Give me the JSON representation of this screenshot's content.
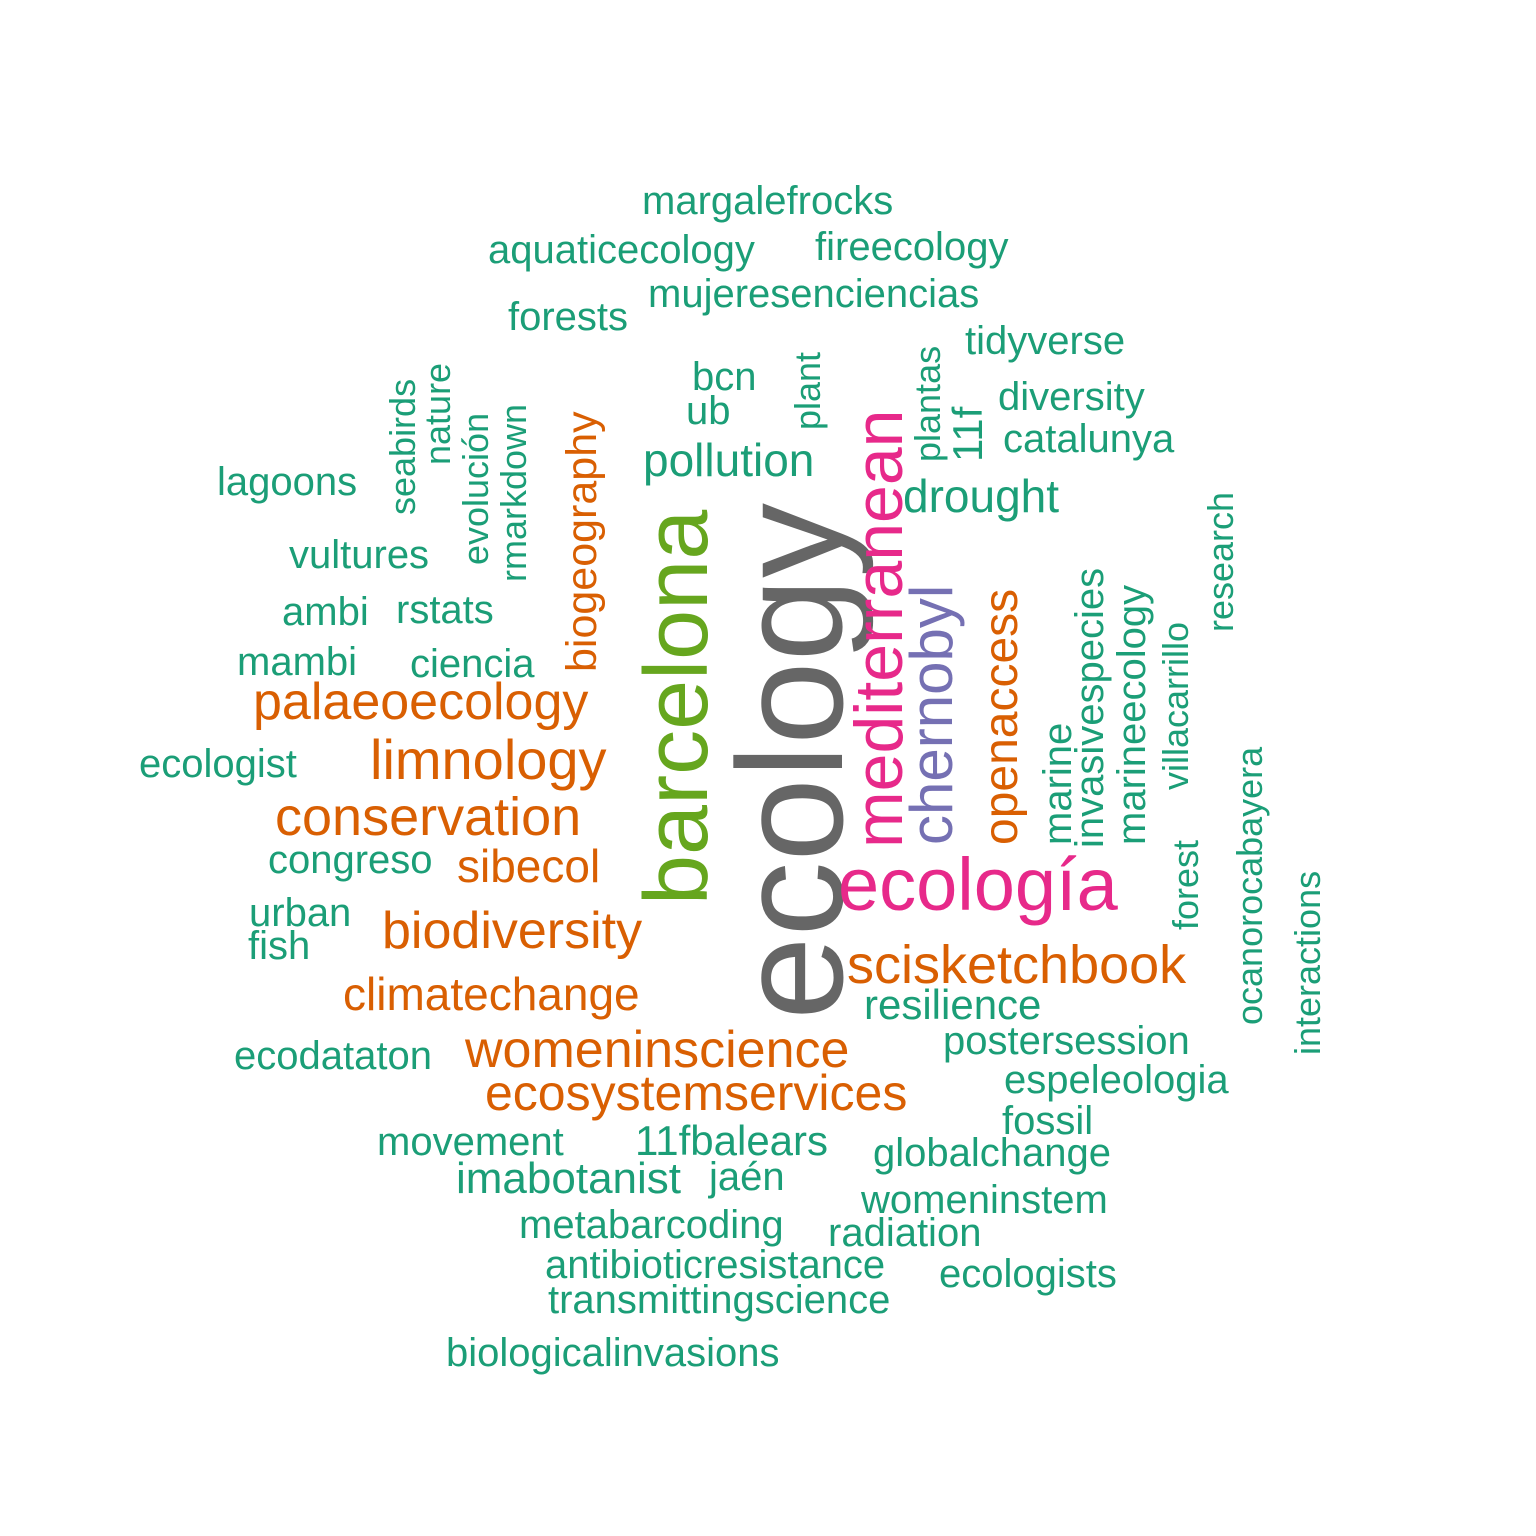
{
  "colors": {
    "teal": "#1b9e77",
    "orange": "#d95f02",
    "purple": "#7570b3",
    "pink": "#e7298a",
    "green": "#66a61e",
    "gray": "#666666"
  },
  "words": [
    {
      "text": "ecology",
      "color": "gray"
    },
    {
      "text": "barcelona",
      "color": "green"
    },
    {
      "text": "mediterranean",
      "color": "pink"
    },
    {
      "text": "ecología",
      "color": "pink"
    },
    {
      "text": "chernobyl",
      "color": "purple"
    },
    {
      "text": "openaccess",
      "color": "orange"
    },
    {
      "text": "biogeography",
      "color": "orange"
    },
    {
      "text": "palaeoecology",
      "color": "orange"
    },
    {
      "text": "limnology",
      "color": "orange"
    },
    {
      "text": "conservation",
      "color": "orange"
    },
    {
      "text": "sibecol",
      "color": "orange"
    },
    {
      "text": "biodiversity",
      "color": "orange"
    },
    {
      "text": "climatechange",
      "color": "orange"
    },
    {
      "text": "womeninscience",
      "color": "orange"
    },
    {
      "text": "ecosystemservices",
      "color": "orange"
    },
    {
      "text": "scisketchbook",
      "color": "orange"
    },
    {
      "text": "margalefrocks",
      "color": "teal"
    },
    {
      "text": "aquaticecology",
      "color": "teal"
    },
    {
      "text": "fireecology",
      "color": "teal"
    },
    {
      "text": "mujeresenciencias",
      "color": "teal"
    },
    {
      "text": "forests",
      "color": "teal"
    },
    {
      "text": "tidyverse",
      "color": "teal"
    },
    {
      "text": "bcn",
      "color": "teal"
    },
    {
      "text": "ub",
      "color": "teal"
    },
    {
      "text": "diversity",
      "color": "teal"
    },
    {
      "text": "catalunya",
      "color": "teal"
    },
    {
      "text": "pollution",
      "color": "teal"
    },
    {
      "text": "drought",
      "color": "teal"
    },
    {
      "text": "lagoons",
      "color": "teal"
    },
    {
      "text": "vultures",
      "color": "teal"
    },
    {
      "text": "ambi",
      "color": "teal"
    },
    {
      "text": "rstats",
      "color": "teal"
    },
    {
      "text": "mambi",
      "color": "teal"
    },
    {
      "text": "ciencia",
      "color": "teal"
    },
    {
      "text": "ecologist",
      "color": "teal"
    },
    {
      "text": "congreso",
      "color": "teal"
    },
    {
      "text": "urban",
      "color": "teal"
    },
    {
      "text": "fish",
      "color": "teal"
    },
    {
      "text": "resilience",
      "color": "teal"
    },
    {
      "text": "postersession",
      "color": "teal"
    },
    {
      "text": "ecodataton",
      "color": "teal"
    },
    {
      "text": "espeleologia",
      "color": "teal"
    },
    {
      "text": "fossil",
      "color": "teal"
    },
    {
      "text": "movement",
      "color": "teal"
    },
    {
      "text": "11fbalears",
      "color": "teal"
    },
    {
      "text": "globalchange",
      "color": "teal"
    },
    {
      "text": "imabotanist",
      "color": "teal"
    },
    {
      "text": "jaén",
      "color": "teal"
    },
    {
      "text": "womeninstem",
      "color": "teal"
    },
    {
      "text": "metabarcoding",
      "color": "teal"
    },
    {
      "text": "radiation",
      "color": "teal"
    },
    {
      "text": "antibioticresistance",
      "color": "teal"
    },
    {
      "text": "ecologists",
      "color": "teal"
    },
    {
      "text": "transmittingscience",
      "color": "teal"
    },
    {
      "text": "biologicalinvasions",
      "color": "teal"
    },
    {
      "text": "seabirds",
      "color": "teal"
    },
    {
      "text": "nature",
      "color": "teal"
    },
    {
      "text": "evolución",
      "color": "teal"
    },
    {
      "text": "rmarkdown",
      "color": "teal"
    },
    {
      "text": "plant",
      "color": "teal"
    },
    {
      "text": "plantas",
      "color": "teal"
    },
    {
      "text": "11f",
      "color": "teal"
    },
    {
      "text": "invasivespecies",
      "color": "teal"
    },
    {
      "text": "marine",
      "color": "teal"
    },
    {
      "text": "marineecology",
      "color": "teal"
    },
    {
      "text": "villacarrillo",
      "color": "teal"
    },
    {
      "text": "research",
      "color": "teal"
    },
    {
      "text": "forest",
      "color": "teal"
    },
    {
      "text": "ocanorocabayera",
      "color": "teal"
    },
    {
      "text": "interactions",
      "color": "teal"
    }
  ]
}
